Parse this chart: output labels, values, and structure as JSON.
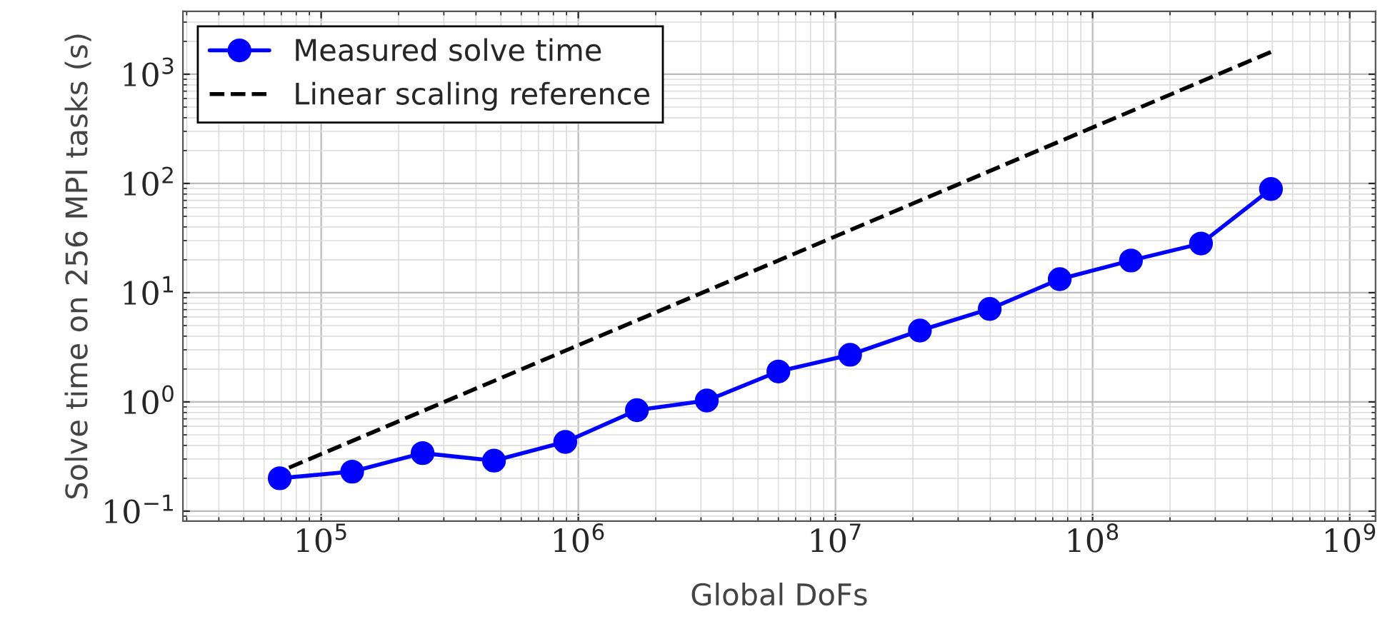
{
  "chart_data": {
    "type": "line",
    "xlabel": "Global DoFs",
    "ylabel": "Solve time on 256 MPI tasks (s)",
    "log": "xy",
    "grid": true,
    "legend": "top left",
    "marker": "circle",
    "xlim": [
      29000,
      1260000000
    ],
    "ylim": [
      0.081,
      3760
    ],
    "xticks": [
      {
        "value": 100000,
        "label": "10$^{5}$"
      },
      {
        "value": 1000000,
        "label": "10$^{6}$"
      },
      {
        "value": 10000000,
        "label": "10$^{7}$"
      },
      {
        "value": 100000000,
        "label": "10$^{8}$"
      },
      {
        "value": 1000000000,
        "label": "10$^{9}$"
      }
    ],
    "yticks": [
      {
        "value": 0.1,
        "label": "10$^{−1}$"
      },
      {
        "value": 1,
        "label": "10$^{0}$"
      },
      {
        "value": 10,
        "label": "10$^{1}$"
      },
      {
        "value": 100,
        "label": "10$^{2}$"
      },
      {
        "value": 1000,
        "label": "10$^{3}$"
      }
    ],
    "series": [
      {
        "name": "Measured solve time",
        "color": "#0000ff",
        "line_style": "solid",
        "x": [
          69000,
          132000,
          248000,
          470000,
          890000,
          1690000,
          3160000,
          6000000,
          11400000,
          21300000,
          39800000,
          74500000,
          141000000,
          264000000,
          494000000
        ],
        "values": [
          0.2,
          0.23,
          0.34,
          0.29,
          0.43,
          0.84,
          1.03,
          1.9,
          2.7,
          4.5,
          7.1,
          13.3,
          19.7,
          28.2,
          89
        ]
      },
      {
        "name": "Linear scaling reference",
        "color": "#000000",
        "marker": "none",
        "line_style": "dashed",
        "x": [
          75000,
          494000000
        ],
        "values": [
          0.25,
          1600
        ]
      }
    ]
  }
}
